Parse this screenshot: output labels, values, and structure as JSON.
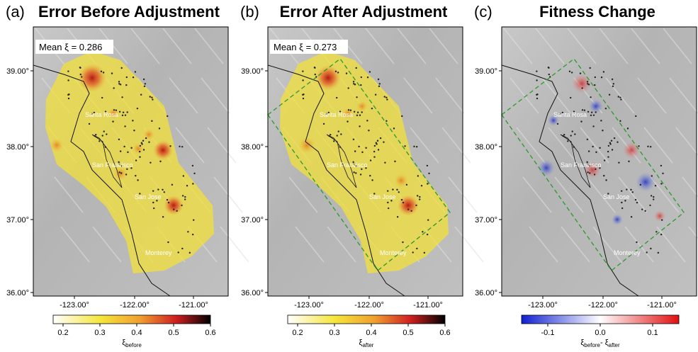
{
  "panels": [
    {
      "label": "(a)",
      "title": "Error Before Adjustment",
      "annotation": "Mean  ξ = 0.286",
      "lat_ticks": [
        "39.00°",
        "38.00°",
        "37.00°",
        "36.00°"
      ],
      "lon_ticks": [
        "-123.00°",
        "-122.00°",
        "-121.00°"
      ],
      "cities": [
        "Santa Rosa",
        "San Francisco",
        "San Jose",
        "Monterey"
      ],
      "colorbar": {
        "ticks": [
          "0.2",
          "0.3",
          "0.4",
          "0.5",
          "0.6"
        ],
        "label": [
          "ξ",
          "before"
        ]
      }
    },
    {
      "label": "(b)",
      "title": "Error After Adjustment",
      "annotation": "Mean  ξ = 0.273",
      "lat_ticks": [
        "39.00°",
        "38.00°",
        "37.00°",
        "36.00°"
      ],
      "lon_ticks": [
        "-123.00°",
        "-122.00°",
        "-121.00°"
      ],
      "cities": [
        "Santa Rosa",
        "San Francisco",
        "San Jose",
        "Monterey"
      ],
      "colorbar": {
        "ticks": [
          "0.2",
          "0.3",
          "0.4",
          "0.5",
          "0.6"
        ],
        "label": [
          "ξ",
          "after"
        ]
      }
    },
    {
      "label": "(c)",
      "title": "Fitness Change",
      "lat_ticks": [
        "39.00°",
        "38.00°",
        "37.00°",
        "36.00°"
      ],
      "lon_ticks": [
        "-123.00°",
        "-122.00°",
        "-121.00°"
      ],
      "cities": [
        "Santa Rosa",
        "San Francisco",
        "San Jose",
        "Monterey"
      ],
      "colorbar": {
        "ticks": [
          "-0.1",
          "0.0",
          "0.1"
        ],
        "label": [
          "ξ",
          "before",
          "- ξ",
          "after"
        ]
      }
    }
  ]
}
